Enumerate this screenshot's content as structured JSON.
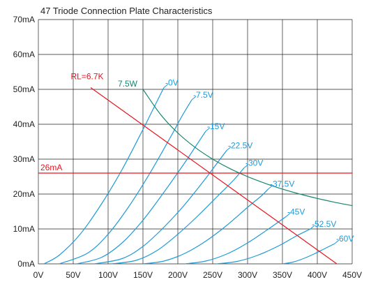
{
  "chart_data": {
    "type": "line",
    "title": "47 Triode Connection Plate Characteristics",
    "xlabel": "",
    "ylabel": "",
    "xlim": [
      0,
      450
    ],
    "ylim": [
      0,
      70
    ],
    "grid": true,
    "x_ticks": [
      "0V",
      "50V",
      "100V",
      "150V",
      "200V",
      "250V",
      "300V",
      "350V",
      "400V",
      "450V"
    ],
    "y_ticks": [
      "0mA",
      "10mA",
      "20mA",
      "30mA",
      "40mA",
      "50mA",
      "60mA",
      "70mA"
    ],
    "colors": {
      "curves": "#1e9bd7",
      "load_line": "#e8141e",
      "dissipation": "#14876e",
      "grid": "#222222"
    },
    "series": [
      {
        "name": "-0V",
        "color": "#1e9bd7",
        "x": [
          8,
          30,
          60,
          90,
          120,
          150,
          165,
          180
        ],
        "y": [
          0,
          2.5,
          8.5,
          17,
          27,
          38.5,
          44.5,
          50.5
        ]
      },
      {
        "name": "-7.5V",
        "color": "#1e9bd7",
        "x": [
          30,
          70,
          100,
          130,
          160,
          190,
          205,
          220
        ],
        "y": [
          0,
          3,
          8.5,
          16.5,
          26,
          36.5,
          42,
          47
        ]
      },
      {
        "name": "-15V",
        "color": "#1e9bd7",
        "x": [
          55,
          90,
          120,
          150,
          180,
          210,
          225,
          240
        ],
        "y": [
          0,
          1.8,
          6,
          12.5,
          20.5,
          29,
          33.5,
          38
        ]
      },
      {
        "name": "-22.5V",
        "color": "#1e9bd7",
        "x": [
          80,
          120,
          150,
          180,
          210,
          240,
          255,
          270
        ],
        "y": [
          0,
          1.5,
          5,
          10.5,
          17,
          24.5,
          28.5,
          32.5
        ]
      },
      {
        "name": "-30V",
        "color": "#1e9bd7",
        "x": [
          105,
          140,
          170,
          200,
          230,
          260,
          280,
          295
        ],
        "y": [
          0,
          1,
          3.8,
          8.5,
          14,
          20,
          24,
          27.5
        ]
      },
      {
        "name": "-37.5V",
        "color": "#1e9bd7",
        "x": [
          150,
          180,
          210,
          240,
          270,
          300,
          320,
          330
        ],
        "y": [
          0,
          0.8,
          3,
          6.5,
          11,
          16.2,
          19.5,
          21.5
        ]
      },
      {
        "name": "-45V",
        "color": "#1e9bd7",
        "x": [
          210,
          240,
          270,
          300,
          330,
          355
        ],
        "y": [
          0,
          0.8,
          2.8,
          6,
          10,
          13.5
        ]
      },
      {
        "name": "-52.5V",
        "color": "#1e9bd7",
        "x": [
          255,
          285,
          315,
          345,
          370,
          390
        ],
        "y": [
          0,
          0.7,
          2.5,
          5.2,
          8,
          10
        ]
      },
      {
        "name": "-60V",
        "color": "#1e9bd7",
        "x": [
          350,
          365,
          380,
          395,
          410,
          425
        ],
        "y": [
          0,
          0.5,
          1.5,
          2.8,
          4.3,
          5.8
        ]
      },
      {
        "name": "7.5W",
        "color": "#14876e",
        "kind": "dissipation",
        "x": [
          150,
          175,
          200,
          225,
          250,
          275,
          300,
          325,
          350,
          375,
          400,
          425,
          450
        ],
        "y": [
          50,
          42.86,
          37.5,
          33.33,
          30,
          27.27,
          25,
          23.08,
          21.43,
          20,
          18.75,
          17.65,
          16.67
        ]
      },
      {
        "name": "RL=6.7K",
        "color": "#e8141e",
        "kind": "load",
        "x": [
          75,
          428
        ],
        "y": [
          50.5,
          0
        ]
      },
      {
        "name": "26mA",
        "color": "#e8141e",
        "kind": "hline",
        "x": [
          0,
          450
        ],
        "y": [
          26,
          26
        ]
      }
    ]
  }
}
